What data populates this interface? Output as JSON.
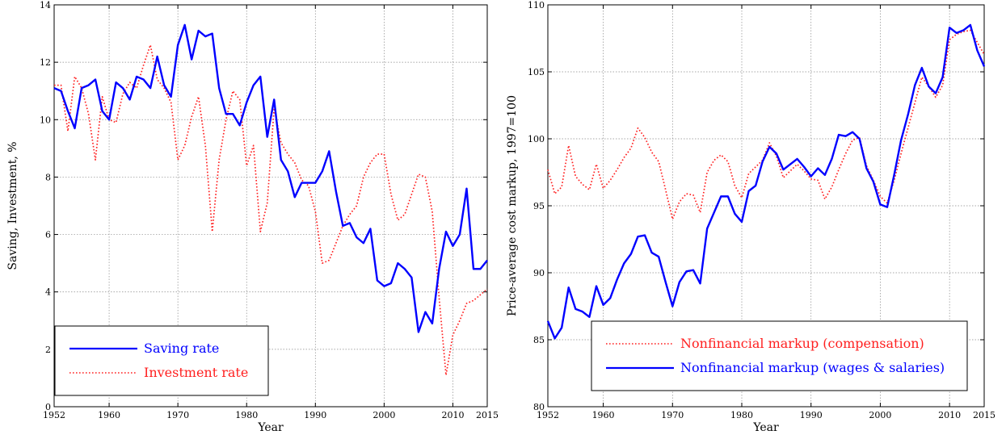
{
  "chart_data": [
    {
      "type": "line",
      "xlabel": "Year",
      "ylabel": "Saving, Investment, %",
      "xlim": [
        1952,
        2015
      ],
      "ylim": [
        0,
        14
      ],
      "xticks": [
        1952,
        1960,
        1970,
        1980,
        1990,
        2000,
        2010,
        2015
      ],
      "yticks": [
        0,
        2,
        4,
        6,
        8,
        10,
        12,
        14
      ],
      "grid": true,
      "legend_position": "bottom-left",
      "series": [
        {
          "name": "Saving rate",
          "color": "#0000ff",
          "style": "solid",
          "x": [
            1952,
            1953,
            1954,
            1955,
            1956,
            1957,
            1958,
            1959,
            1960,
            1961,
            1962,
            1963,
            1964,
            1965,
            1966,
            1967,
            1968,
            1969,
            1970,
            1971,
            1972,
            1973,
            1974,
            1975,
            1976,
            1977,
            1978,
            1979,
            1980,
            1981,
            1982,
            1983,
            1984,
            1985,
            1986,
            1987,
            1988,
            1989,
            1990,
            1991,
            1992,
            1993,
            1994,
            1995,
            1996,
            1997,
            1998,
            1999,
            2000,
            2001,
            2002,
            2003,
            2004,
            2005,
            2006,
            2007,
            2008,
            2009,
            2010,
            2011,
            2012,
            2013,
            2014,
            2015
          ],
          "y": [
            11.1,
            11.0,
            10.3,
            9.7,
            11.1,
            11.2,
            11.4,
            10.3,
            10.0,
            11.3,
            11.1,
            10.7,
            11.5,
            11.4,
            11.1,
            12.2,
            11.2,
            10.8,
            12.6,
            13.3,
            12.1,
            13.1,
            12.9,
            13.0,
            11.1,
            10.2,
            10.2,
            9.8,
            10.6,
            11.2,
            11.5,
            9.4,
            10.7,
            8.6,
            8.2,
            7.3,
            7.8,
            7.8,
            7.8,
            8.2,
            8.9,
            7.5,
            6.3,
            6.4,
            5.9,
            5.7,
            6.2,
            4.4,
            4.2,
            4.3,
            5.0,
            4.8,
            4.5,
            2.6,
            3.3,
            2.9,
            4.8,
            6.1,
            5.6,
            6.0,
            7.6,
            4.8,
            4.8,
            5.1
          ]
        },
        {
          "name": "Investment rate",
          "color": "#ff2020",
          "style": "dotted",
          "x": [
            1952,
            1953,
            1954,
            1955,
            1956,
            1957,
            1958,
            1959,
            1960,
            1961,
            1962,
            1963,
            1964,
            1965,
            1966,
            1967,
            1968,
            1969,
            1970,
            1971,
            1972,
            1973,
            1974,
            1975,
            1976,
            1977,
            1978,
            1979,
            1980,
            1981,
            1982,
            1983,
            1984,
            1985,
            1986,
            1987,
            1988,
            1989,
            1990,
            1991,
            1992,
            1993,
            1994,
            1995,
            1996,
            1997,
            1998,
            1999,
            2000,
            2001,
            2002,
            2003,
            2004,
            2005,
            2006,
            2007,
            2008,
            2009,
            2010,
            2011,
            2012,
            2013,
            2014,
            2015
          ],
          "y": [
            11.2,
            11.2,
            9.6,
            11.5,
            11.1,
            10.2,
            8.6,
            10.8,
            10.0,
            9.9,
            10.9,
            11.3,
            11.1,
            11.9,
            12.6,
            11.4,
            11.1,
            10.6,
            8.6,
            9.1,
            10.1,
            10.8,
            9.1,
            6.1,
            8.6,
            10.0,
            11.0,
            10.7,
            8.4,
            9.1,
            6.1,
            7.1,
            10.4,
            9.2,
            8.8,
            8.5,
            7.9,
            7.7,
            6.8,
            5.0,
            5.1,
            5.7,
            6.3,
            6.7,
            7.0,
            8.0,
            8.5,
            8.8,
            8.8,
            7.4,
            6.5,
            6.7,
            7.4,
            8.1,
            8.0,
            6.8,
            3.8,
            1.1,
            2.5,
            3.0,
            3.6,
            3.7,
            3.9,
            4.1
          ]
        }
      ]
    },
    {
      "type": "line",
      "xlabel": "Year",
      "ylabel": "Price-average cost markup, 1997=100",
      "xlim": [
        1952,
        2015
      ],
      "ylim": [
        80,
        110
      ],
      "xticks": [
        1952,
        1960,
        1970,
        1980,
        1990,
        2000,
        2010,
        2015
      ],
      "yticks": [
        80,
        85,
        90,
        95,
        100,
        105,
        110
      ],
      "grid": true,
      "legend_position": "bottom-right",
      "series": [
        {
          "name": "Nonfinancial markup (compensation)",
          "color": "#ff2020",
          "style": "dotted",
          "x": [
            1952,
            1953,
            1954,
            1955,
            1956,
            1957,
            1958,
            1959,
            1960,
            1961,
            1962,
            1963,
            1964,
            1965,
            1966,
            1967,
            1968,
            1969,
            1970,
            1971,
            1972,
            1973,
            1974,
            1975,
            1976,
            1977,
            1978,
            1979,
            1980,
            1981,
            1982,
            1983,
            1984,
            1985,
            1986,
            1987,
            1988,
            1989,
            1990,
            1991,
            1992,
            1993,
            1994,
            1995,
            1996,
            1997,
            1998,
            1999,
            2000,
            2001,
            2002,
            2003,
            2004,
            2005,
            2006,
            2007,
            2008,
            2009,
            2010,
            2011,
            2012,
            2013,
            2014,
            2015
          ],
          "y": [
            97.7,
            95.9,
            96.4,
            99.5,
            97.2,
            96.6,
            96.2,
            98.1,
            96.3,
            96.9,
            97.7,
            98.6,
            99.3,
            100.8,
            100.1,
            99.0,
            98.3,
            96.2,
            94.0,
            95.3,
            95.9,
            95.8,
            94.5,
            97.5,
            98.4,
            98.8,
            98.3,
            96.5,
            95.6,
            97.4,
            97.9,
            98.4,
            99.7,
            98.7,
            97.1,
            97.6,
            98.1,
            97.6,
            97.0,
            96.9,
            95.5,
            96.4,
            97.7,
            98.9,
            99.9,
            100.1,
            98.0,
            96.9,
            95.7,
            95.2,
            96.9,
            98.9,
            100.8,
            102.7,
            104.6,
            103.9,
            103.1,
            104.0,
            107.4,
            107.8,
            108.0,
            108.1,
            107.2,
            106.3
          ]
        },
        {
          "name": "Nonfinancial markup (wages & salaries)",
          "color": "#0000ff",
          "style": "solid",
          "x": [
            1952,
            1953,
            1954,
            1955,
            1956,
            1957,
            1958,
            1959,
            1960,
            1961,
            1962,
            1963,
            1964,
            1965,
            1966,
            1967,
            1968,
            1969,
            1970,
            1971,
            1972,
            1973,
            1974,
            1975,
            1976,
            1977,
            1978,
            1979,
            1980,
            1981,
            1982,
            1983,
            1984,
            1985,
            1986,
            1987,
            1988,
            1989,
            1990,
            1991,
            1992,
            1993,
            1994,
            1995,
            1996,
            1997,
            1998,
            1999,
            2000,
            2001,
            2002,
            2003,
            2004,
            2005,
            2006,
            2007,
            2008,
            2009,
            2010,
            2011,
            2012,
            2013,
            2014,
            2015
          ],
          "y": [
            86.4,
            85.1,
            85.9,
            88.9,
            87.3,
            87.1,
            86.7,
            89.0,
            87.6,
            88.1,
            89.5,
            90.7,
            91.4,
            92.7,
            92.8,
            91.5,
            91.2,
            89.3,
            87.5,
            89.3,
            90.1,
            90.2,
            89.2,
            93.3,
            94.5,
            95.7,
            95.7,
            94.4,
            93.8,
            96.1,
            96.5,
            98.3,
            99.4,
            98.9,
            97.7,
            98.1,
            98.5,
            97.9,
            97.2,
            97.8,
            97.3,
            98.5,
            100.3,
            100.2,
            100.5,
            100.0,
            97.8,
            96.8,
            95.1,
            94.9,
            97.3,
            99.9,
            101.8,
            104.0,
            105.3,
            103.9,
            103.4,
            104.6,
            108.3,
            107.9,
            108.1,
            108.5,
            106.6,
            105.4
          ]
        }
      ]
    }
  ]
}
